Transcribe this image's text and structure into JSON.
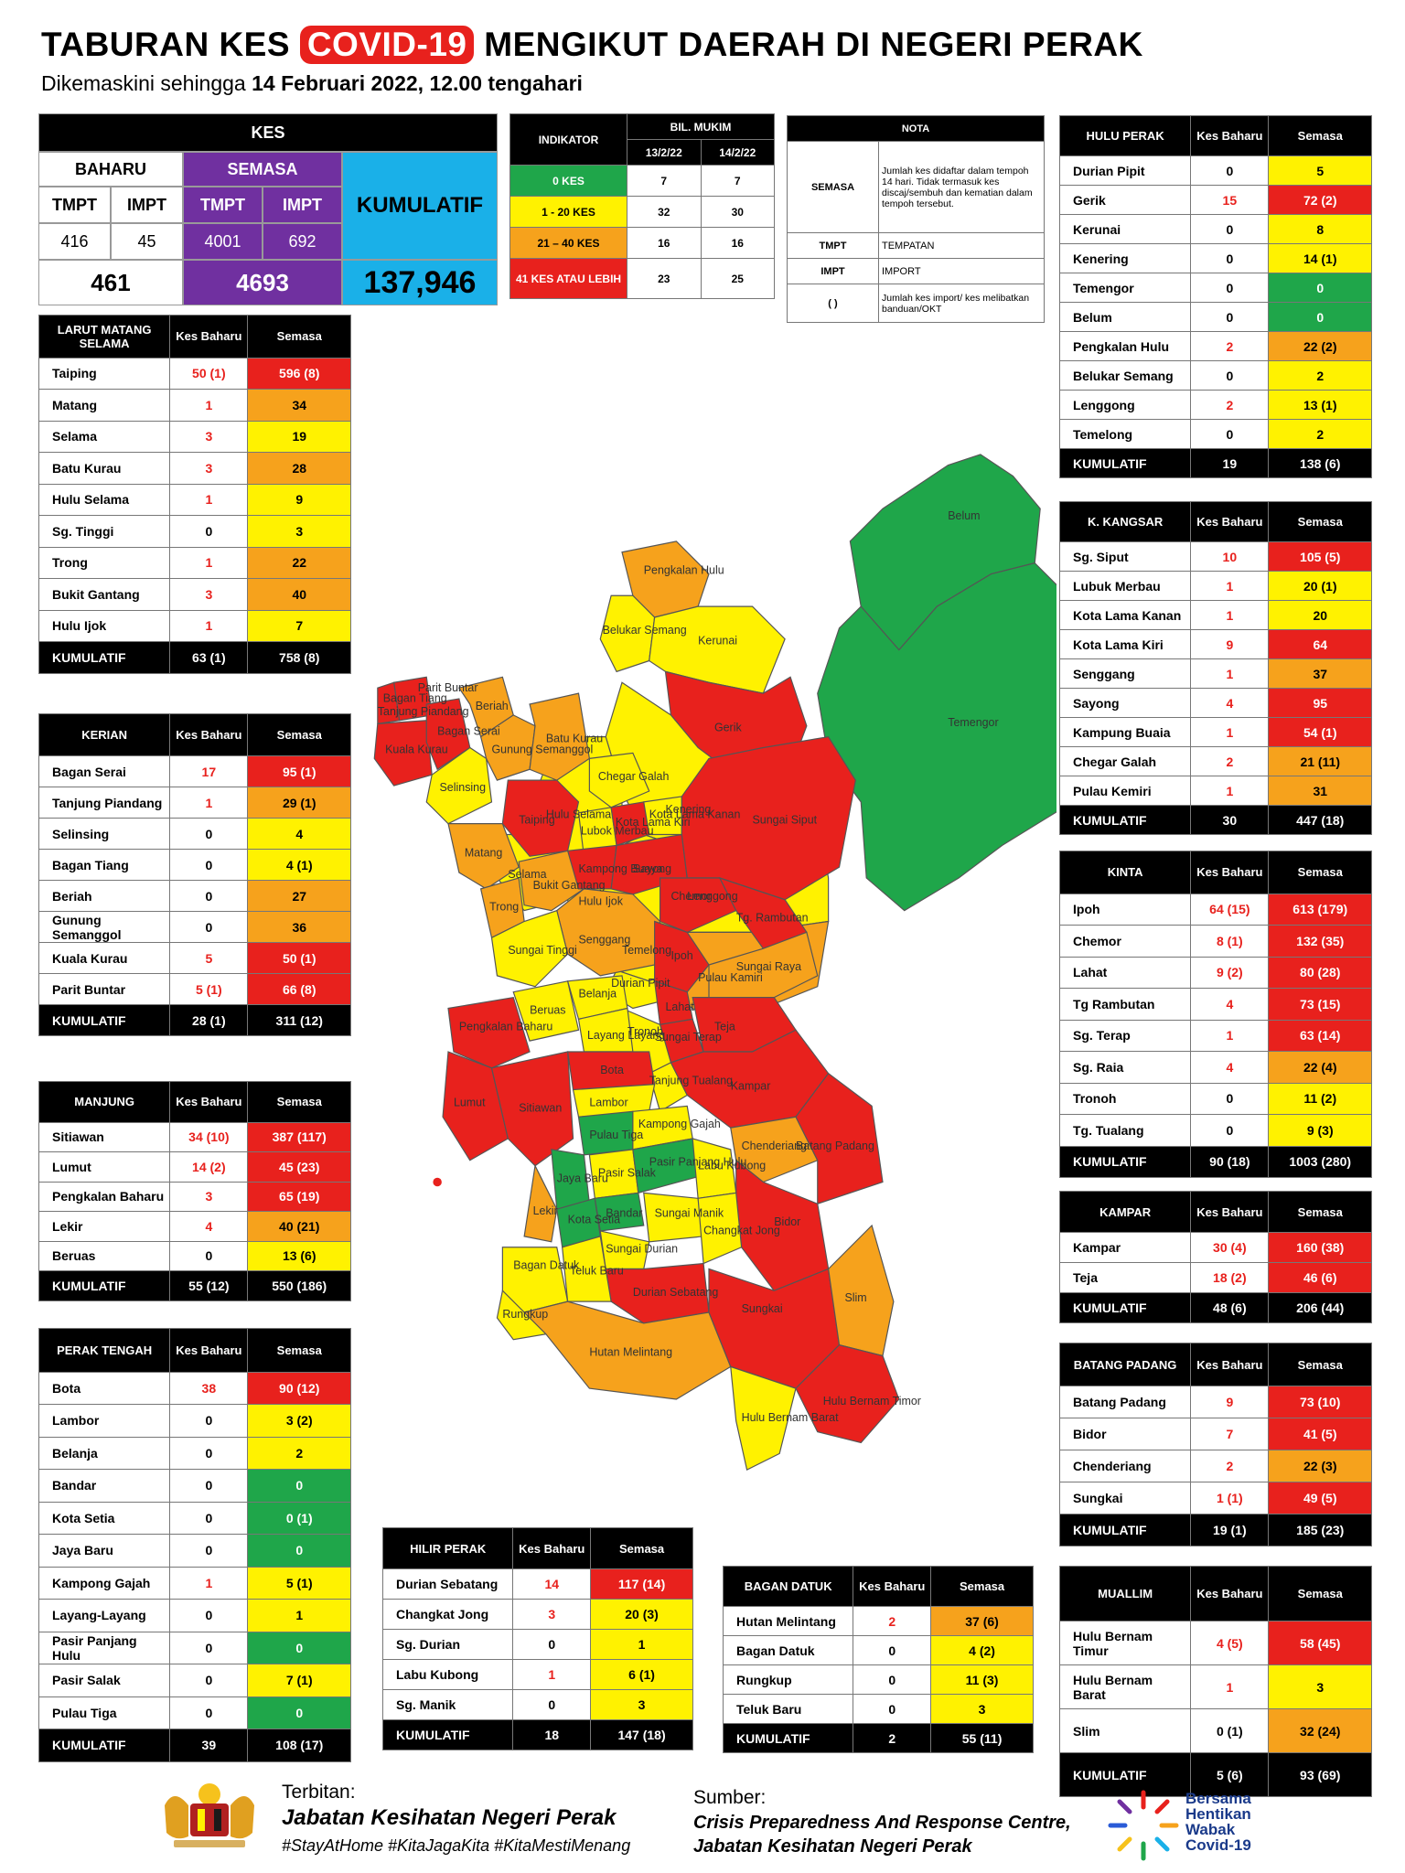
{
  "header": {
    "title_pre": "TABURAN KES ",
    "title_highlight": "COVID-19",
    "title_post": " MENGIKUT DAERAH DI NEGERI PERAK",
    "subtitle_pre": "Dikemaskini sehingga ",
    "subtitle_bold": "14 Februari 2022, 12.00 tengahari"
  },
  "colors": {
    "red": "#e8211d",
    "orange": "#f6a21c",
    "yellow": "#fff200",
    "green": "#1fa64a",
    "purple": "#7030a0",
    "blue": "#1ab0e8"
  },
  "kes": {
    "title": "KES",
    "baharu": "BAHARU",
    "semasa": "SEMASA",
    "kumulatif_label": "KUMULATIF",
    "tmpt": "TMPT",
    "impt": "IMPT",
    "baharu_tmpt": "416",
    "baharu_impt": "45",
    "semasa_tmpt": "4001",
    "semasa_impt": "692",
    "baharu_total": "461",
    "semasa_total": "4693",
    "kumulatif": "137,946"
  },
  "indicator": {
    "header": "INDIKATOR",
    "bil_mukim": "BIL. MUKIM",
    "d1": "13/2/22",
    "d2": "14/2/22",
    "rows": [
      {
        "label": "0 KES",
        "v1": "7",
        "v2": "7"
      },
      {
        "label": "1 - 20 KES",
        "v1": "32",
        "v2": "30"
      },
      {
        "label": "21 – 40 KES",
        "v1": "16",
        "v2": "16"
      },
      {
        "label": "41 KES ATAU LEBIH",
        "v1": "23",
        "v2": "25"
      }
    ]
  },
  "nota": {
    "header": "NOTA",
    "rows": [
      {
        "k": "SEMASA",
        "v": "Jumlah kes didaftar dalam tempoh 14 hari. Tidak termasuk kes discaj/sembuh dan kematian dalam tempoh tersebut."
      },
      {
        "k": "TMPT",
        "v": "TEMPATAN"
      },
      {
        "k": "IMPT",
        "v": "IMPORT"
      },
      {
        "k": "( )",
        "v": "Jumlah kes import/ kes melibatkan banduan/OKT"
      }
    ]
  },
  "col_headers": {
    "kes_baharu": "Kes Baharu",
    "semasa": "Semasa",
    "kumulatif": "KUMULATIF"
  },
  "districts": [
    {
      "id": "larut",
      "name": "LARUT MATANG SELAMA",
      "rows": [
        {
          "n": "Taiping",
          "kb": "50 (1)",
          "s": "596 (8)",
          "c": "r"
        },
        {
          "n": "Matang",
          "kb": "1",
          "s": "34",
          "c": "o"
        },
        {
          "n": "Selama",
          "kb": "3",
          "s": "19",
          "c": "y"
        },
        {
          "n": "Batu Kurau",
          "kb": "3",
          "s": "28",
          "c": "o"
        },
        {
          "n": "Hulu Selama",
          "kb": "1",
          "s": "9",
          "c": "y"
        },
        {
          "n": "Sg. Tinggi",
          "kb": "0",
          "s": "3",
          "c": "y"
        },
        {
          "n": "Trong",
          "kb": "1",
          "s": "22",
          "c": "o"
        },
        {
          "n": "Bukit Gantang",
          "kb": "3",
          "s": "40",
          "c": "o"
        },
        {
          "n": "Hulu Ijok",
          "kb": "1",
          "s": "7",
          "c": "y"
        }
      ],
      "total_kb": "63 (1)",
      "total_s": "758 (8)"
    },
    {
      "id": "kerian",
      "name": "KERIAN",
      "rows": [
        {
          "n": "Bagan Serai",
          "kb": "17",
          "s": "95 (1)",
          "c": "r"
        },
        {
          "n": "Tanjung Piandang",
          "kb": "1",
          "s": "29 (1)",
          "c": "o"
        },
        {
          "n": "Selinsing",
          "kb": "0",
          "s": "4",
          "c": "y"
        },
        {
          "n": "Bagan Tiang",
          "kb": "0",
          "s": "4 (1)",
          "c": "y"
        },
        {
          "n": "Beriah",
          "kb": "0",
          "s": "27",
          "c": "o"
        },
        {
          "n": "Gunung Semanggol",
          "kb": "0",
          "s": "36",
          "c": "o"
        },
        {
          "n": "Kuala Kurau",
          "kb": "5",
          "s": "50 (1)",
          "c": "r"
        },
        {
          "n": "Parit Buntar",
          "kb": "5 (1)",
          "s": "66 (8)",
          "c": "r"
        }
      ],
      "total_kb": "28 (1)",
      "total_s": "311 (12)"
    },
    {
      "id": "manjung",
      "name": "MANJUNG",
      "rows": [
        {
          "n": "Sitiawan",
          "kb": "34 (10)",
          "s": "387 (117)",
          "c": "r"
        },
        {
          "n": "Lumut",
          "kb": "14 (2)",
          "s": "45 (23)",
          "c": "r"
        },
        {
          "n": "Pengkalan Baharu",
          "kb": "3",
          "s": "65 (19)",
          "c": "r"
        },
        {
          "n": "Lekir",
          "kb": "4",
          "s": "40 (21)",
          "c": "o"
        },
        {
          "n": "Beruas",
          "kb": "0",
          "s": "13 (6)",
          "c": "y"
        }
      ],
      "total_kb": "55 (12)",
      "total_s": "550 (186)"
    },
    {
      "id": "perak_tengah",
      "name": "PERAK TENGAH",
      "rows": [
        {
          "n": "Bota",
          "kb": "38",
          "s": "90 (12)",
          "c": "r"
        },
        {
          "n": "Lambor",
          "kb": "0",
          "s": "3 (2)",
          "c": "y"
        },
        {
          "n": "Belanja",
          "kb": "0",
          "s": "2",
          "c": "y"
        },
        {
          "n": "Bandar",
          "kb": "0",
          "s": "0",
          "c": "g"
        },
        {
          "n": "Kota Setia",
          "kb": "0",
          "s": "0 (1)",
          "c": "g"
        },
        {
          "n": "Jaya Baru",
          "kb": "0",
          "s": "0",
          "c": "g"
        },
        {
          "n": "Kampong Gajah",
          "kb": "1",
          "s": "5 (1)",
          "c": "y"
        },
        {
          "n": "Layang-Layang",
          "kb": "0",
          "s": "1",
          "c": "y"
        },
        {
          "n": "Pasir Panjang Hulu",
          "kb": "0",
          "s": "0",
          "c": "g"
        },
        {
          "n": "Pasir Salak",
          "kb": "0",
          "s": "7 (1)",
          "c": "y"
        },
        {
          "n": "Pulau Tiga",
          "kb": "0",
          "s": "0",
          "c": "g"
        }
      ],
      "total_kb": "39",
      "total_s": "108 (17)"
    },
    {
      "id": "hilir_perak",
      "name": "HILIR PERAK",
      "rows": [
        {
          "n": "Durian Sebatang",
          "kb": "14",
          "s": "117 (14)",
          "c": "r"
        },
        {
          "n": "Changkat Jong",
          "kb": "3",
          "s": "20 (3)",
          "c": "y"
        },
        {
          "n": "Sg. Durian",
          "kb": "0",
          "s": "1",
          "c": "y"
        },
        {
          "n": "Labu Kubong",
          "kb": "1",
          "s": "6 (1)",
          "c": "y"
        },
        {
          "n": "Sg. Manik",
          "kb": "0",
          "s": "3",
          "c": "y"
        }
      ],
      "total_kb": "18",
      "total_s": "147 (18)"
    },
    {
      "id": "bagan_datuk",
      "name": "BAGAN DATUK",
      "rows": [
        {
          "n": "Hutan Melintang",
          "kb": "2",
          "s": "37 (6)",
          "c": "o"
        },
        {
          "n": "Bagan Datuk",
          "kb": "0",
          "s": "4 (2)",
          "c": "y"
        },
        {
          "n": "Rungkup",
          "kb": "0",
          "s": "11 (3)",
          "c": "y"
        },
        {
          "n": "Teluk Baru",
          "kb": "0",
          "s": "3",
          "c": "y"
        }
      ],
      "total_kb": "2",
      "total_s": "55 (11)"
    },
    {
      "id": "hulu_perak",
      "name": "HULU PERAK",
      "rows": [
        {
          "n": "Durian Pipit",
          "kb": "0",
          "s": "5",
          "c": "y"
        },
        {
          "n": "Gerik",
          "kb": "15",
          "s": "72 (2)",
          "c": "r"
        },
        {
          "n": "Kerunai",
          "kb": "0",
          "s": "8",
          "c": "y"
        },
        {
          "n": "Kenering",
          "kb": "0",
          "s": "14 (1)",
          "c": "y"
        },
        {
          "n": "Temengor",
          "kb": "0",
          "s": "0",
          "c": "g"
        },
        {
          "n": "Belum",
          "kb": "0",
          "s": "0",
          "c": "g"
        },
        {
          "n": "Pengkalan Hulu",
          "kb": "2",
          "s": "22 (2)",
          "c": "o"
        },
        {
          "n": "Belukar Semang",
          "kb": "0",
          "s": "2",
          "c": "y"
        },
        {
          "n": "Lenggong",
          "kb": "2",
          "s": "13 (1)",
          "c": "y"
        },
        {
          "n": "Temelong",
          "kb": "0",
          "s": "2",
          "c": "y"
        }
      ],
      "total_kb": "19",
      "total_s": "138 (6)"
    },
    {
      "id": "kuala_kangsar",
      "name": "K. KANGSAR",
      "rows": [
        {
          "n": "Sg. Siput",
          "kb": "10",
          "s": "105 (5)",
          "c": "r"
        },
        {
          "n": "Lubuk Merbau",
          "kb": "1",
          "s": "20 (1)",
          "c": "y"
        },
        {
          "n": "Kota Lama Kanan",
          "kb": "1",
          "s": "20",
          "c": "y"
        },
        {
          "n": "Kota Lama Kiri",
          "kb": "9",
          "s": "64",
          "c": "r"
        },
        {
          "n": "Senggang",
          "kb": "1",
          "s": "37",
          "c": "o"
        },
        {
          "n": "Sayong",
          "kb": "4",
          "s": "95",
          "c": "r"
        },
        {
          "n": "Kampung Buaia",
          "kb": "1",
          "s": "54 (1)",
          "c": "r"
        },
        {
          "n": "Chegar Galah",
          "kb": "2",
          "s": "21 (11)",
          "c": "o"
        },
        {
          "n": "Pulau Kemiri",
          "kb": "1",
          "s": "31",
          "c": "o"
        }
      ],
      "total_kb": "30",
      "total_s": "447 (18)"
    },
    {
      "id": "kinta",
      "name": "KINTA",
      "rows": [
        {
          "n": "Ipoh",
          "kb": "64 (15)",
          "s": "613 (179)",
          "c": "r"
        },
        {
          "n": "Chemor",
          "kb": "8 (1)",
          "s": "132 (35)",
          "c": "r"
        },
        {
          "n": "Lahat",
          "kb": "9 (2)",
          "s": "80 (28)",
          "c": "r"
        },
        {
          "n": "Tg Rambutan",
          "kb": "4",
          "s": "73 (15)",
          "c": "r"
        },
        {
          "n": "Sg. Terap",
          "kb": "1",
          "s": "63 (14)",
          "c": "r"
        },
        {
          "n": "Sg. Raia",
          "kb": "4",
          "s": "22 (4)",
          "c": "o"
        },
        {
          "n": "Tronoh",
          "kb": "0",
          "s": "11 (2)",
          "c": "y"
        },
        {
          "n": "Tg. Tualang",
          "kb": "0",
          "s": "9 (3)",
          "c": "y"
        }
      ],
      "total_kb": "90 (18)",
      "total_s": "1003 (280)"
    },
    {
      "id": "kampar",
      "name": "KAMPAR",
      "rows": [
        {
          "n": "Kampar",
          "kb": "30 (4)",
          "s": "160 (38)",
          "c": "r"
        },
        {
          "n": "Teja",
          "kb": "18 (2)",
          "s": "46 (6)",
          "c": "r"
        }
      ],
      "total_kb": "48 (6)",
      "total_s": "206 (44)"
    },
    {
      "id": "batang_padang",
      "name": "BATANG PADANG",
      "rows": [
        {
          "n": "Batang Padang",
          "kb": "9",
          "s": "73 (10)",
          "c": "r"
        },
        {
          "n": "Bidor",
          "kb": "7",
          "s": "41 (5)",
          "c": "r"
        },
        {
          "n": "Chenderiang",
          "kb": "2",
          "s": "22 (3)",
          "c": "o"
        },
        {
          "n": "Sungkai",
          "kb": "1 (1)",
          "s": "49 (5)",
          "c": "r"
        }
      ],
      "total_kb": "19 (1)",
      "total_s": "185 (23)"
    },
    {
      "id": "muallim",
      "name": "MUALLIM",
      "rows": [
        {
          "n": "Hulu Bernam Timur",
          "kb": "4 (5)",
          "s": "58 (45)",
          "c": "r"
        },
        {
          "n": "Hulu Bernam Barat",
          "kb": "1",
          "s": "3",
          "c": "y"
        },
        {
          "n": "Slim",
          "kb": "0 (1)",
          "s": "32 (24)",
          "c": "o"
        }
      ],
      "total_kb": "5 (6)",
      "total_s": "93 (69)"
    }
  ],
  "map_labels": [
    "Belum",
    "Temengor",
    "Pengkalan Hulu",
    "Belukar Semang",
    "Kerunai",
    "Gerik",
    "Kenering",
    "Hulu Selama",
    "Selama",
    "Hulu Ijok",
    "Lenggong",
    "Temelong",
    "Durian Pipit",
    "Pulau Kamiri",
    "Bagan Tiang",
    "Parit Buntar",
    "Tanjung Piandang",
    "Beriah",
    "Kuala Kurau",
    "Bagan Serai",
    "Gunung Semanggol",
    "Batu Kurau",
    "Selinsing",
    "Chegar Galah",
    "Taiping",
    "Lubok Merbau",
    "Kota Lama Kiri",
    "Kota Lama Kanan",
    "Sungai Siput",
    "Matang",
    "Kampong Buaya",
    "Sayong",
    "Bukit Gantang",
    "Trong",
    "Chemor",
    "Tg. Rambutan",
    "Senggang",
    "Ipoh",
    "Sungai Tinggi",
    "Sungai Raya",
    "Lahat",
    "Pengkalan Baharu",
    "Beruas",
    "Belanja",
    "Sungai Terap",
    "Teja",
    "Layang Layang",
    "Tronoh",
    "Tanjung Tualang",
    "Kampar",
    "Bota",
    "Lumut",
    "Sitiawan",
    "Lambor",
    "Chenderiang",
    "Batang Padang",
    "Pulau Tiga",
    "Kampong Gajah",
    "Pasir Panjang Hulu",
    "Jaya Baru",
    "Pasir Salak",
    "Labu Kubong",
    "Bidor",
    "Lekir",
    "Kota Setia",
    "Bandar",
    "Sungai Manik",
    "Sungai Durian",
    "Changkat Jong",
    "Bagan Datuk",
    "Teluk Baru",
    "Durian Sebatang",
    "Sungkai",
    "Slim",
    "Rungkup",
    "Hutan Melintang",
    "Hulu Bernam Barat",
    "Hulu Bernam Timor"
  ],
  "footer": {
    "terbitan": "Terbitan:",
    "publisher": "Jabatan Kesihatan Negeri Perak",
    "hashtags": "#StayAtHome #KitaJagaKita #KitaMestiMenang",
    "sumber": "Sumber:",
    "source1": "Crisis Preparedness And Response Centre,",
    "source2": "Jabatan Kesihatan Negeri Perak",
    "logo_lines": [
      "Bersama",
      "Hentikan",
      "Wabak",
      "Covid-19"
    ]
  }
}
